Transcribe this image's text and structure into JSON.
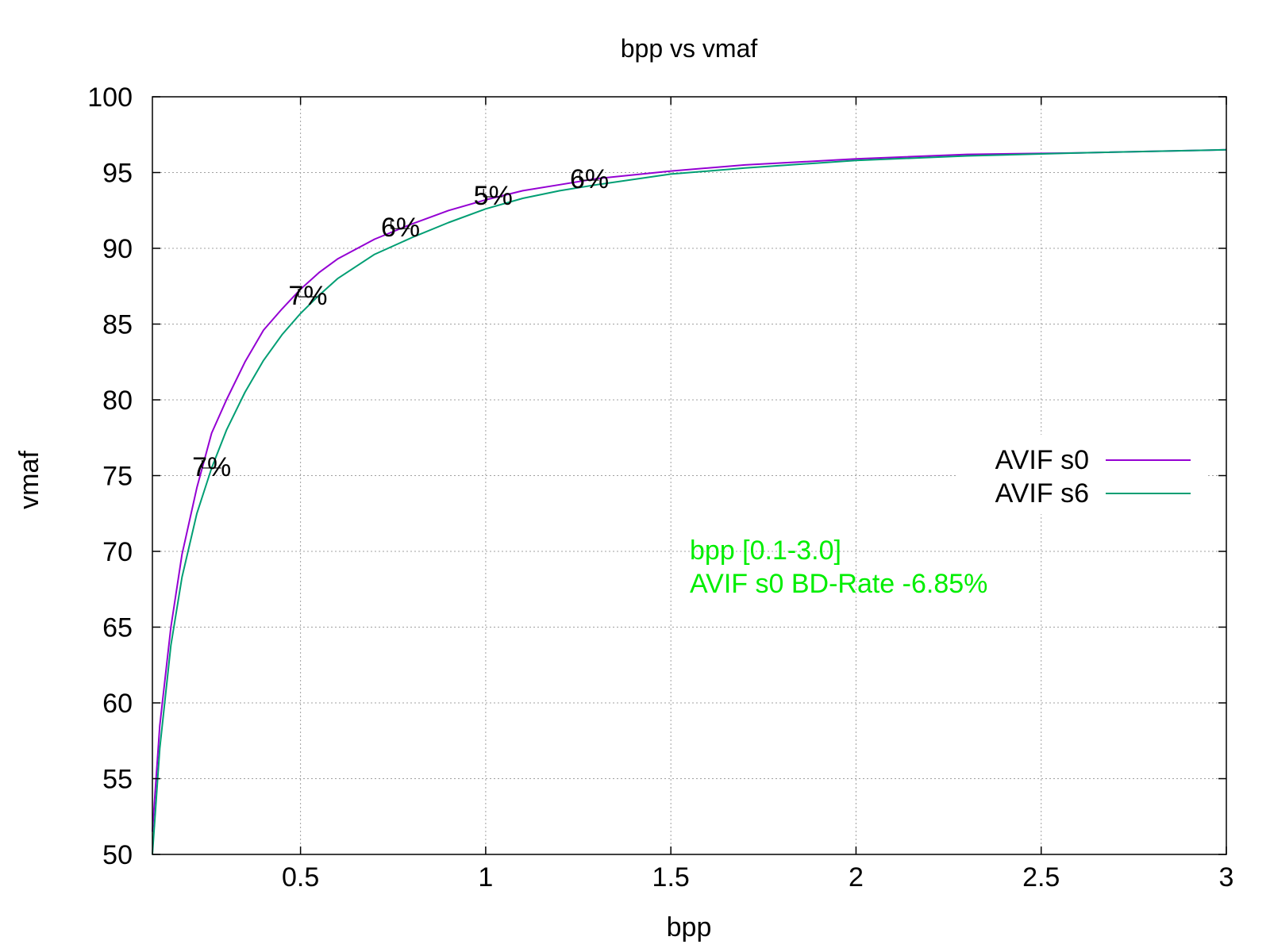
{
  "chart_data": {
    "type": "line",
    "title": "bpp vs vmaf",
    "xlabel": "bpp",
    "ylabel": "vmaf",
    "xlim": [
      0.1,
      3.0
    ],
    "ylim": [
      50,
      100
    ],
    "x_ticks": [
      0.5,
      1,
      1.5,
      2,
      2.5,
      3
    ],
    "x_tick_labels": [
      "0.5",
      "1",
      "1.5",
      "2",
      "2.5",
      "3"
    ],
    "y_ticks": [
      50,
      55,
      60,
      65,
      70,
      75,
      80,
      85,
      90,
      95,
      100
    ],
    "y_tick_labels": [
      "50",
      "55",
      "60",
      "65",
      "70",
      "75",
      "80",
      "85",
      "90",
      "95",
      "100"
    ],
    "grid": true,
    "legend_position": "right",
    "series": [
      {
        "name": "AVIF s0",
        "color": "#9400d3",
        "x": [
          0.1,
          0.12,
          0.15,
          0.18,
          0.22,
          0.26,
          0.3,
          0.35,
          0.4,
          0.45,
          0.5,
          0.55,
          0.6,
          0.7,
          0.8,
          0.9,
          1.0,
          1.1,
          1.2,
          1.3,
          1.5,
          1.7,
          2.0,
          2.3,
          2.6,
          3.0
        ],
        "values": [
          51.5,
          58.5,
          65.0,
          69.8,
          74.2,
          77.8,
          80.0,
          82.5,
          84.6,
          86.0,
          87.3,
          88.4,
          89.3,
          90.6,
          91.6,
          92.5,
          93.2,
          93.8,
          94.2,
          94.6,
          95.1,
          95.5,
          95.9,
          96.2,
          96.3,
          96.5
        ]
      },
      {
        "name": "AVIF s6",
        "color": "#009e73",
        "x": [
          0.1,
          0.12,
          0.15,
          0.18,
          0.22,
          0.26,
          0.3,
          0.35,
          0.4,
          0.45,
          0.5,
          0.55,
          0.6,
          0.7,
          0.8,
          0.9,
          1.0,
          1.1,
          1.2,
          1.3,
          1.5,
          1.7,
          2.0,
          2.3,
          2.6,
          3.0
        ],
        "values": [
          50.0,
          57.0,
          63.8,
          68.3,
          72.5,
          75.5,
          78.0,
          80.5,
          82.6,
          84.3,
          85.7,
          86.9,
          88.0,
          89.6,
          90.7,
          91.7,
          92.6,
          93.3,
          93.8,
          94.2,
          94.9,
          95.3,
          95.8,
          96.1,
          96.3,
          96.5
        ]
      }
    ],
    "annotations": [
      {
        "text": "7%",
        "x": 0.26,
        "y": 75.5
      },
      {
        "text": "7%",
        "x": 0.52,
        "y": 86.8
      },
      {
        "text": "6%",
        "x": 0.77,
        "y": 91.3
      },
      {
        "text": "5%",
        "x": 1.02,
        "y": 93.4
      },
      {
        "text": "6%",
        "x": 1.28,
        "y": 94.5
      }
    ],
    "notes": [
      "bpp [0.1-3.0]",
      "AVIF s0 BD-Rate -6.85%"
    ],
    "notes_color": "#00ee00"
  }
}
